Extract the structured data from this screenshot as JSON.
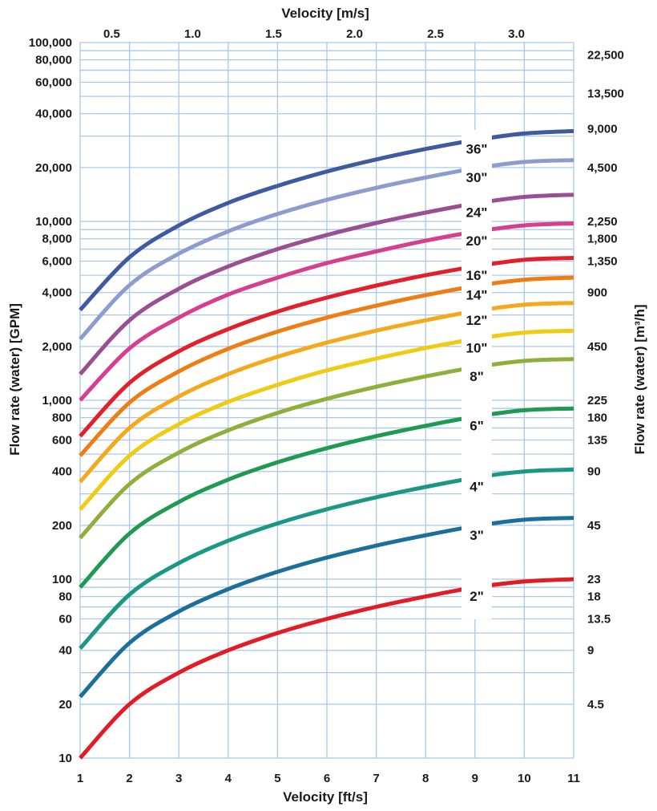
{
  "chart_data": {
    "type": "line",
    "x_axis_bottom": {
      "label": "Velocity [ft/s]",
      "range": [
        1,
        11
      ],
      "ticks": [
        "1",
        "2",
        "3",
        "4",
        "5",
        "6",
        "7",
        "8",
        "9",
        "10",
        "11"
      ]
    },
    "x_axis_top": {
      "label": "Velocity [m/s]",
      "ticks": [
        {
          "label": "0.5",
          "ft_s": 1.64
        },
        {
          "label": "1.0",
          "ft_s": 3.28
        },
        {
          "label": "1.5",
          "ft_s": 4.92
        },
        {
          "label": "2.0",
          "ft_s": 6.56
        },
        {
          "label": "2.5",
          "ft_s": 8.2
        },
        {
          "label": "3.0",
          "ft_s": 9.84
        }
      ]
    },
    "y_axis_left": {
      "label": "Flow rate (water) [GPM]",
      "scale": "log",
      "range": [
        10,
        100000
      ],
      "ticks": [
        {
          "label": "10",
          "value": 10
        },
        {
          "label": "20",
          "value": 20
        },
        {
          "label": "40",
          "value": 40
        },
        {
          "label": "60",
          "value": 60
        },
        {
          "label": "80",
          "value": 80
        },
        {
          "label": "100",
          "value": 100
        },
        {
          "label": "200",
          "value": 200
        },
        {
          "label": "400",
          "value": 400
        },
        {
          "label": "600",
          "value": 600
        },
        {
          "label": "800",
          "value": 800
        },
        {
          "label": "1,000",
          "value": 1000
        },
        {
          "label": "2,000",
          "value": 2000
        },
        {
          "label": "4,000",
          "value": 4000
        },
        {
          "label": "6,000",
          "value": 6000
        },
        {
          "label": "8,000",
          "value": 8000
        },
        {
          "label": "10,000",
          "value": 10000
        },
        {
          "label": "20,000",
          "value": 20000
        },
        {
          "label": "40,000",
          "value": 40000
        },
        {
          "label": "60,000",
          "value": 60000
        },
        {
          "label": "80,000",
          "value": 80000
        },
        {
          "label": "100,000",
          "value": 100000
        }
      ]
    },
    "y_axis_right": {
      "label": "Flow rate (water) [m³/h]",
      "ticks": [
        {
          "label": "22,500",
          "gpm": 85000
        },
        {
          "label": "13,500",
          "gpm": 52000
        },
        {
          "label": "9,000",
          "gpm": 33000
        },
        {
          "label": "4,500",
          "gpm": 20000
        },
        {
          "label": "2,250",
          "gpm": 10000
        },
        {
          "label": "1,800",
          "gpm": 8000
        },
        {
          "label": "1,350",
          "gpm": 6000
        },
        {
          "label": "900",
          "gpm": 4000
        },
        {
          "label": "450",
          "gpm": 2000
        },
        {
          "label": "225",
          "gpm": 1000
        },
        {
          "label": "180",
          "gpm": 800
        },
        {
          "label": "135",
          "gpm": 600
        },
        {
          "label": "90",
          "gpm": 400
        },
        {
          "label": "45",
          "gpm": 200
        },
        {
          "label": "23",
          "gpm": 100
        },
        {
          "label": "18",
          "gpm": 80
        },
        {
          "label": "13.5",
          "gpm": 60
        },
        {
          "label": "9",
          "gpm": 40
        },
        {
          "label": "4.5",
          "gpm": 20
        }
      ]
    },
    "grid": true,
    "series": [
      {
        "name": "36\"",
        "color": "#3f5aa0",
        "x": [
          1,
          2,
          3,
          4,
          5,
          6,
          7,
          8,
          9,
          10,
          11
        ],
        "y": [
          3200,
          6300,
          9500,
          12700,
          15800,
          19000,
          22200,
          25400,
          28500,
          31000,
          32000
        ]
      },
      {
        "name": "30\"",
        "color": "#8e9bcf",
        "x": [
          1,
          2,
          3,
          4,
          5,
          6,
          7,
          8,
          9,
          10,
          11
        ],
        "y": [
          2200,
          4400,
          6600,
          8800,
          11000,
          13200,
          15400,
          17600,
          19800,
          21500,
          22000
        ]
      },
      {
        "name": "24\"",
        "color": "#9a4f92",
        "x": [
          1,
          2,
          3,
          4,
          5,
          6,
          7,
          8,
          9,
          10,
          11
        ],
        "y": [
          1400,
          2800,
          4200,
          5600,
          7000,
          8400,
          9800,
          11200,
          12600,
          13700,
          14100
        ]
      },
      {
        "name": "20\"",
        "color": "#d63f8e",
        "x": [
          1,
          2,
          3,
          4,
          5,
          6,
          7,
          8,
          9,
          10,
          11
        ],
        "y": [
          1000,
          1950,
          2900,
          3900,
          4850,
          5850,
          6800,
          7800,
          8750,
          9500,
          9750
        ]
      },
      {
        "name": "16\"",
        "color": "#e2202c",
        "x": [
          1,
          2,
          3,
          4,
          5,
          6,
          7,
          8,
          9,
          10,
          11
        ],
        "y": [
          630,
          1250,
          1880,
          2500,
          3130,
          3750,
          4380,
          5000,
          5600,
          6100,
          6250
        ]
      },
      {
        "name": "14\"",
        "color": "#ee7d12",
        "x": [
          1,
          2,
          3,
          4,
          5,
          6,
          7,
          8,
          9,
          10,
          11
        ],
        "y": [
          490,
          970,
          1450,
          1940,
          2420,
          2900,
          3380,
          3870,
          4350,
          4720,
          4850
        ]
      },
      {
        "name": "12\"",
        "color": "#f4a81a",
        "x": [
          1,
          2,
          3,
          4,
          5,
          6,
          7,
          8,
          9,
          10,
          11
        ],
        "y": [
          350,
          700,
          1050,
          1400,
          1750,
          2100,
          2450,
          2800,
          3150,
          3420,
          3500
        ]
      },
      {
        "name": "10\"",
        "color": "#efcb12",
        "x": [
          1,
          2,
          3,
          4,
          5,
          6,
          7,
          8,
          9,
          10,
          11
        ],
        "y": [
          245,
          490,
          735,
          980,
          1220,
          1470,
          1710,
          1960,
          2200,
          2390,
          2450
        ]
      },
      {
        "name": "8\"",
        "color": "#8fae3a",
        "x": [
          1,
          2,
          3,
          4,
          5,
          6,
          7,
          8,
          9,
          10,
          11
        ],
        "y": [
          170,
          340,
          510,
          680,
          850,
          1020,
          1190,
          1360,
          1530,
          1660,
          1700
        ]
      },
      {
        "name": "6\"",
        "color": "#1e9a52",
        "x": [
          1,
          2,
          3,
          4,
          5,
          6,
          7,
          8,
          9,
          10,
          11
        ],
        "y": [
          90,
          180,
          270,
          360,
          450,
          540,
          630,
          720,
          810,
          880,
          900
        ]
      },
      {
        "name": "4\"",
        "color": "#1c9783",
        "x": [
          1,
          2,
          3,
          4,
          5,
          6,
          7,
          8,
          9,
          10,
          11
        ],
        "y": [
          41,
          82,
          123,
          164,
          205,
          246,
          287,
          328,
          369,
          400,
          410
        ]
      },
      {
        "name": "3\"",
        "color": "#1b6f99",
        "x": [
          1,
          2,
          3,
          4,
          5,
          6,
          7,
          8,
          9,
          10,
          11
        ],
        "y": [
          22,
          44,
          66,
          88,
          110,
          132,
          154,
          176,
          198,
          215,
          220
        ]
      },
      {
        "name": "2\"",
        "color": "#e21b25",
        "x": [
          1,
          2,
          3,
          4,
          5,
          6,
          7,
          8,
          9,
          10,
          11
        ],
        "y": [
          10,
          20,
          30,
          40,
          50,
          60,
          70,
          80,
          90,
          97,
          100
        ]
      }
    ]
  }
}
